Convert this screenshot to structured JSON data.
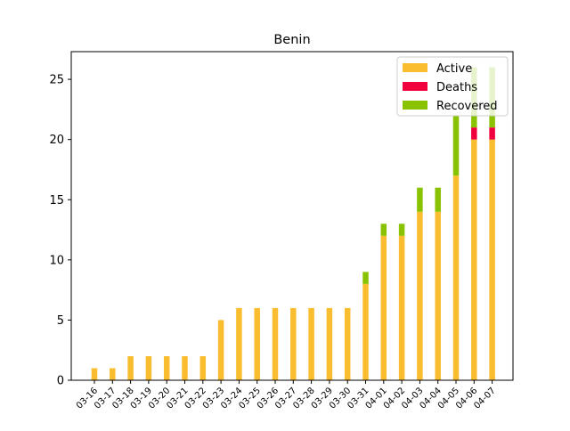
{
  "chart_data": {
    "type": "bar",
    "stacked": true,
    "title": "Benin",
    "xlabel": "",
    "ylabel": "",
    "categories": [
      "03-16",
      "03-17",
      "03-18",
      "03-19",
      "03-20",
      "03-21",
      "03-22",
      "03-23",
      "03-24",
      "03-25",
      "03-26",
      "03-27",
      "03-28",
      "03-29",
      "03-30",
      "03-31",
      "04-01",
      "04-02",
      "04-03",
      "04-04",
      "04-05",
      "04-06",
      "04-07"
    ],
    "series": [
      {
        "name": "Active",
        "color": "#fbbd30",
        "values": [
          1,
          1,
          2,
          2,
          2,
          2,
          2,
          5,
          6,
          6,
          6,
          6,
          6,
          6,
          6,
          8,
          12,
          12,
          14,
          14,
          17,
          20,
          20
        ]
      },
      {
        "name": "Deaths",
        "color": "#f0003c",
        "values": [
          0,
          0,
          0,
          0,
          0,
          0,
          0,
          0,
          0,
          0,
          0,
          0,
          0,
          0,
          0,
          0,
          0,
          0,
          0,
          0,
          0,
          1,
          1
        ]
      },
      {
        "name": "Recovered",
        "color": "#88c200",
        "values": [
          0,
          0,
          0,
          0,
          0,
          0,
          0,
          0,
          0,
          0,
          0,
          0,
          0,
          0,
          0,
          1,
          1,
          1,
          2,
          2,
          5,
          5,
          5
        ]
      }
    ],
    "ylim": [
      0,
      27.3
    ],
    "yticks": [
      0,
      5,
      10,
      15,
      20,
      25
    ],
    "grid": false,
    "legend_position": "top-right"
  }
}
